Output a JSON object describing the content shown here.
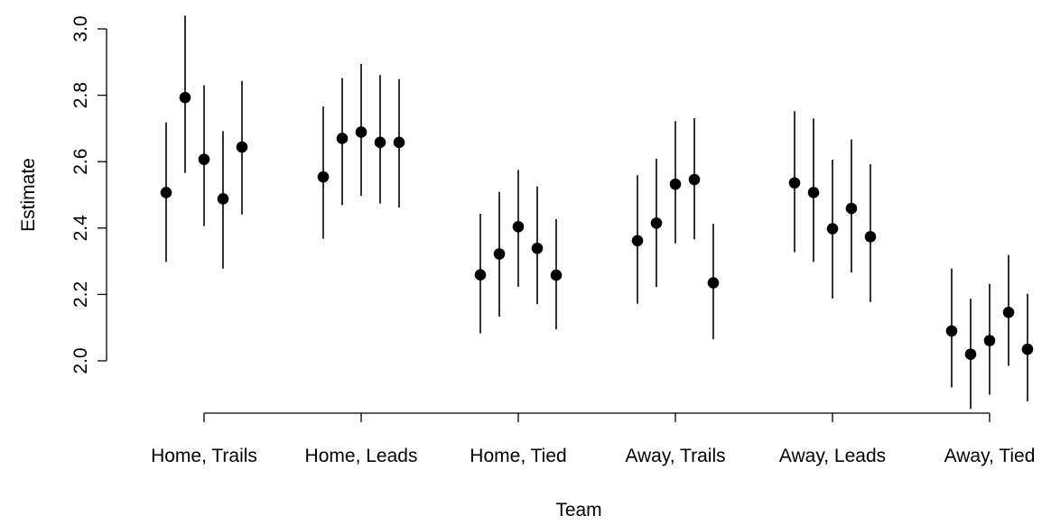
{
  "chart_data": {
    "type": "scatter",
    "error_bars": true,
    "xlabel": "Team",
    "ylabel": "Estimate",
    "ylim": [
      1.85,
      3.04
    ],
    "yticks": [
      "2.0",
      "2.2",
      "2.4",
      "2.6",
      "2.8",
      "3.0"
    ],
    "grid": false,
    "legend": "none",
    "groups": [
      {
        "label": "Home, Trails",
        "points": [
          {
            "est": 2.507,
            "lo": 2.298,
            "hi": 2.718
          },
          {
            "est": 2.793,
            "lo": 2.566,
            "hi": 3.04
          },
          {
            "est": 2.607,
            "lo": 2.406,
            "hi": 2.83
          },
          {
            "est": 2.488,
            "lo": 2.278,
            "hi": 2.692
          },
          {
            "est": 2.644,
            "lo": 2.441,
            "hi": 2.843
          }
        ]
      },
      {
        "label": "Home, Leads",
        "points": [
          {
            "est": 2.554,
            "lo": 2.368,
            "hi": 2.766
          },
          {
            "est": 2.67,
            "lo": 2.469,
            "hi": 2.852
          },
          {
            "est": 2.689,
            "lo": 2.497,
            "hi": 2.894
          },
          {
            "est": 2.658,
            "lo": 2.474,
            "hi": 2.861
          },
          {
            "est": 2.658,
            "lo": 2.462,
            "hi": 2.849
          }
        ]
      },
      {
        "label": "Home, Tied",
        "points": [
          {
            "est": 2.259,
            "lo": 2.083,
            "hi": 2.443
          },
          {
            "est": 2.322,
            "lo": 2.133,
            "hi": 2.509
          },
          {
            "est": 2.404,
            "lo": 2.223,
            "hi": 2.575
          },
          {
            "est": 2.339,
            "lo": 2.171,
            "hi": 2.525
          },
          {
            "est": 2.258,
            "lo": 2.095,
            "hi": 2.427
          }
        ]
      },
      {
        "label": "Away, Trails",
        "points": [
          {
            "est": 2.362,
            "lo": 2.172,
            "hi": 2.559
          },
          {
            "est": 2.415,
            "lo": 2.222,
            "hi": 2.609
          },
          {
            "est": 2.532,
            "lo": 2.354,
            "hi": 2.722
          },
          {
            "est": 2.546,
            "lo": 2.366,
            "hi": 2.731
          },
          {
            "est": 2.235,
            "lo": 2.065,
            "hi": 2.413
          }
        ]
      },
      {
        "label": "Away, Leads",
        "points": [
          {
            "est": 2.536,
            "lo": 2.327,
            "hi": 2.752
          },
          {
            "est": 2.507,
            "lo": 2.298,
            "hi": 2.73
          },
          {
            "est": 2.398,
            "lo": 2.188,
            "hi": 2.606
          },
          {
            "est": 2.459,
            "lo": 2.266,
            "hi": 2.667
          },
          {
            "est": 2.374,
            "lo": 2.177,
            "hi": 2.592
          }
        ]
      },
      {
        "label": "Away, Tied",
        "points": [
          {
            "est": 2.09,
            "lo": 1.92,
            "hi": 2.278
          },
          {
            "est": 2.02,
            "lo": 1.855,
            "hi": 2.187
          },
          {
            "est": 2.061,
            "lo": 1.898,
            "hi": 2.232
          },
          {
            "est": 2.146,
            "lo": 1.985,
            "hi": 2.319
          },
          {
            "est": 2.035,
            "lo": 1.878,
            "hi": 2.202
          }
        ]
      }
    ]
  }
}
